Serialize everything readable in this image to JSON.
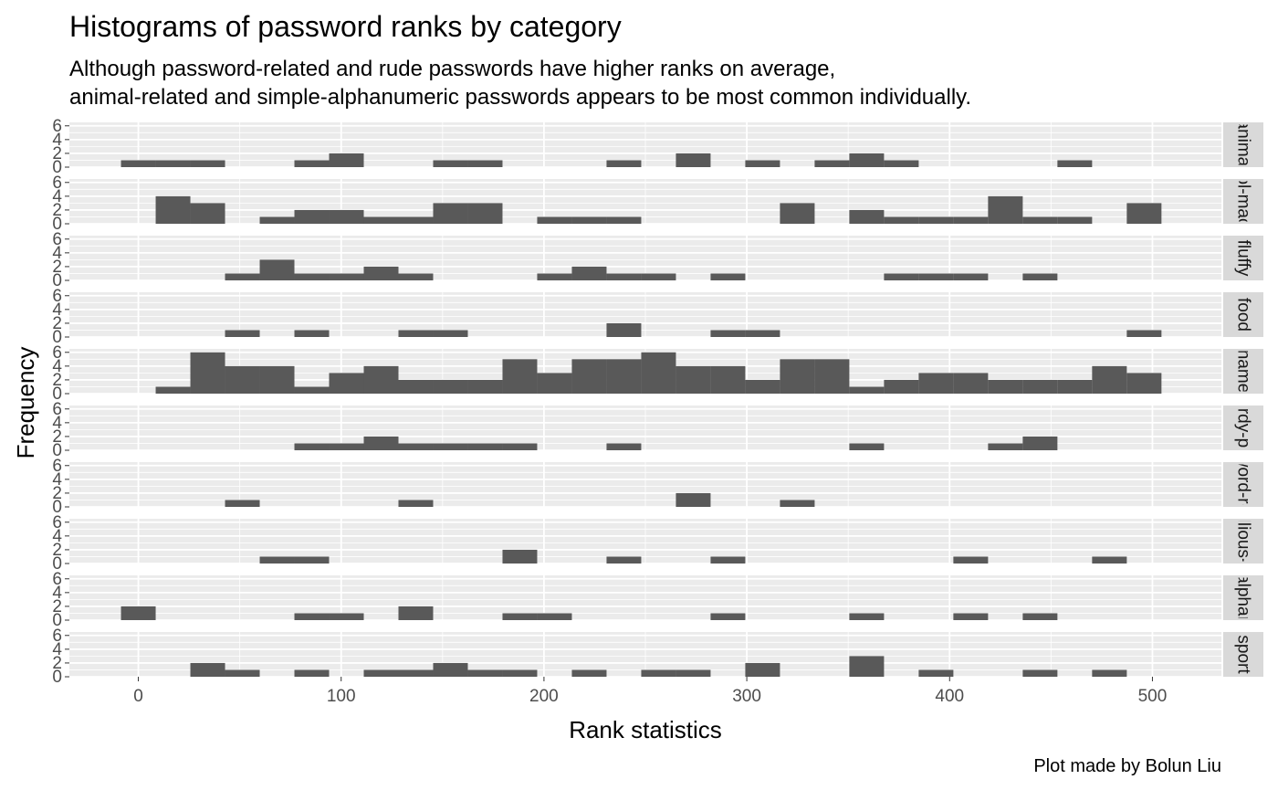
{
  "title": "Histograms of password ranks by category",
  "subtitle_lines": [
    "Although password-related and rude passwords have higher ranks on average,",
    "animal-related and simple-alphanumeric passwords appears to be most common individually."
  ],
  "caption": "Plot made by Bolun Liu",
  "colors": {
    "panel_bg": "#ebebeb",
    "grid_major": "#ffffff",
    "bar_fill": "#595959",
    "strip_bg": "#d9d9d9",
    "tick_text": "#4d4d4d"
  },
  "chart_data": {
    "type": "bar",
    "xlabel": "Rank statistics",
    "ylabel": "Frequency",
    "x_ticks": [
      0,
      100,
      200,
      300,
      400,
      500
    ],
    "y_ticks": [
      0,
      2,
      4,
      6
    ],
    "xlim": [
      -34,
      534
    ],
    "ylim": [
      0,
      6.5
    ],
    "grid": true,
    "bin_width": 17.1,
    "bin_starts": [
      -8.55,
      8.55,
      25.65,
      42.75,
      59.85,
      76.95,
      94.05,
      111.15,
      128.25,
      145.35,
      162.45,
      179.55,
      196.65,
      213.75,
      230.85,
      247.95,
      265.05,
      282.15,
      299.25,
      316.35,
      333.45,
      350.55,
      367.65,
      384.75,
      401.85,
      418.95,
      436.05,
      453.15,
      470.25,
      487.35
    ],
    "facets": [
      {
        "label": "animal",
        "counts": [
          1,
          1,
          1,
          0,
          0,
          1,
          2,
          0,
          0,
          1,
          1,
          0,
          0,
          0,
          1,
          0,
          2,
          0,
          1,
          0,
          1,
          2,
          1,
          0,
          0,
          0,
          0,
          1,
          0,
          0
        ]
      },
      {
        "label": "cool-macho",
        "counts": [
          0,
          4,
          3,
          0,
          1,
          2,
          2,
          1,
          1,
          3,
          3,
          0,
          1,
          1,
          1,
          0,
          0,
          0,
          0,
          3,
          0,
          2,
          1,
          1,
          1,
          4,
          1,
          1,
          0,
          3
        ]
      },
      {
        "label": "fluffy",
        "counts": [
          0,
          0,
          0,
          1,
          3,
          1,
          1,
          2,
          1,
          0,
          0,
          0,
          1,
          2,
          1,
          1,
          0,
          1,
          0,
          0,
          0,
          0,
          1,
          1,
          1,
          0,
          1,
          0,
          0,
          0
        ]
      },
      {
        "label": "food",
        "counts": [
          0,
          0,
          0,
          1,
          0,
          1,
          0,
          0,
          1,
          1,
          0,
          0,
          0,
          0,
          2,
          0,
          0,
          1,
          1,
          0,
          0,
          0,
          0,
          0,
          0,
          0,
          0,
          0,
          0,
          1
        ]
      },
      {
        "label": "name",
        "counts": [
          0,
          1,
          6,
          4,
          4,
          1,
          3,
          4,
          2,
          2,
          2,
          5,
          3,
          5,
          5,
          6,
          4,
          4,
          2,
          5,
          5,
          1,
          2,
          3,
          3,
          2,
          2,
          2,
          4,
          3
        ]
      },
      {
        "label": "nerdy-pop",
        "counts": [
          0,
          0,
          0,
          0,
          0,
          1,
          1,
          2,
          1,
          1,
          1,
          1,
          0,
          0,
          1,
          0,
          0,
          0,
          0,
          0,
          0,
          1,
          0,
          0,
          0,
          1,
          2,
          0,
          0,
          0
        ]
      },
      {
        "label": "password-related",
        "counts": [
          0,
          0,
          0,
          1,
          0,
          0,
          0,
          0,
          1,
          0,
          0,
          0,
          0,
          0,
          0,
          0,
          2,
          0,
          0,
          1,
          0,
          0,
          0,
          0,
          0,
          0,
          0,
          0,
          0,
          0
        ]
      },
      {
        "label": "rebellious-rude",
        "counts": [
          0,
          0,
          0,
          0,
          1,
          1,
          0,
          0,
          0,
          0,
          0,
          2,
          0,
          0,
          1,
          0,
          0,
          1,
          0,
          0,
          0,
          0,
          0,
          0,
          1,
          0,
          0,
          0,
          1,
          0
        ]
      },
      {
        "label": "simple-alphanumeric",
        "counts": [
          2,
          0,
          0,
          0,
          0,
          1,
          1,
          0,
          2,
          0,
          0,
          1,
          1,
          0,
          0,
          0,
          0,
          1,
          0,
          0,
          0,
          1,
          0,
          0,
          1,
          0,
          1,
          0,
          0,
          0
        ]
      },
      {
        "label": "sport",
        "counts": [
          0,
          0,
          2,
          1,
          0,
          1,
          0,
          1,
          1,
          2,
          1,
          1,
          0,
          1,
          0,
          1,
          1,
          0,
          2,
          0,
          0,
          3,
          0,
          1,
          0,
          0,
          1,
          0,
          1,
          0
        ]
      }
    ]
  }
}
